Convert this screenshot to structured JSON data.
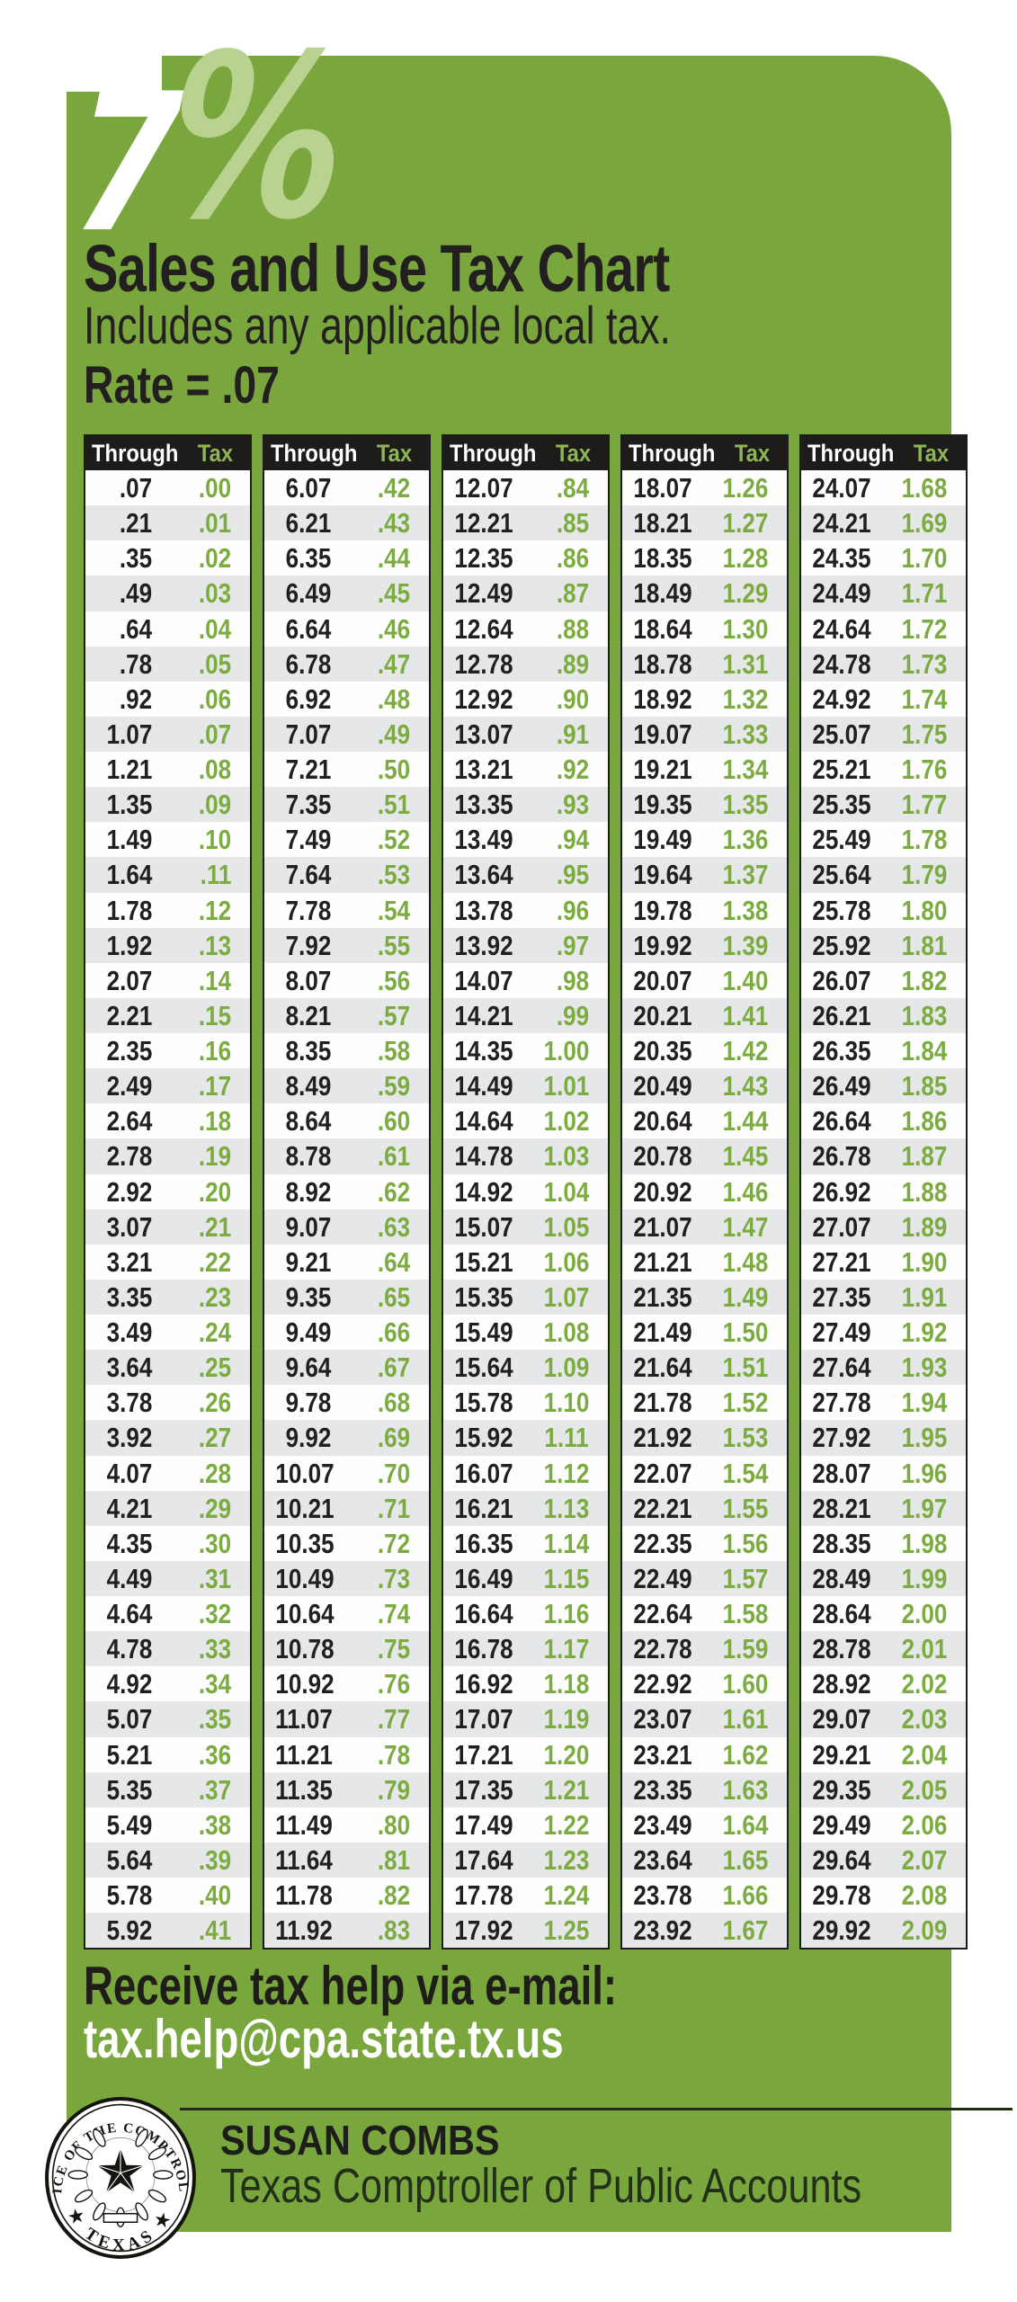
{
  "header": {
    "rate_numeral": "7",
    "rate_percent": "%",
    "title": "Sales and Use Tax Chart",
    "subtitle": "Includes any applicable local tax.",
    "rate_line": "Rate = .07"
  },
  "colors": {
    "panel_green": "#79A73E",
    "light_green_percent": "#BAD28F",
    "header_bar_black": "#1E1C1A",
    "row_gray": "#E6E7E8",
    "through_text": "#231F20",
    "tax_text_green": "#7CAC41",
    "tax_header_green": "#8FB654",
    "email_white": "#FFFFFF"
  },
  "tables": {
    "col_headers": [
      "Through",
      "Tax"
    ],
    "columns": [
      [
        [
          ".07",
          ".00"
        ],
        [
          ".21",
          ".01"
        ],
        [
          ".35",
          ".02"
        ],
        [
          ".49",
          ".03"
        ],
        [
          ".64",
          ".04"
        ],
        [
          ".78",
          ".05"
        ],
        [
          ".92",
          ".06"
        ],
        [
          "1.07",
          ".07"
        ],
        [
          "1.21",
          ".08"
        ],
        [
          "1.35",
          ".09"
        ],
        [
          "1.49",
          ".10"
        ],
        [
          "1.64",
          ".11"
        ],
        [
          "1.78",
          ".12"
        ],
        [
          "1.92",
          ".13"
        ],
        [
          "2.07",
          ".14"
        ],
        [
          "2.21",
          ".15"
        ],
        [
          "2.35",
          ".16"
        ],
        [
          "2.49",
          ".17"
        ],
        [
          "2.64",
          ".18"
        ],
        [
          "2.78",
          ".19"
        ],
        [
          "2.92",
          ".20"
        ],
        [
          "3.07",
          ".21"
        ],
        [
          "3.21",
          ".22"
        ],
        [
          "3.35",
          ".23"
        ],
        [
          "3.49",
          ".24"
        ],
        [
          "3.64",
          ".25"
        ],
        [
          "3.78",
          ".26"
        ],
        [
          "3.92",
          ".27"
        ],
        [
          "4.07",
          ".28"
        ],
        [
          "4.21",
          ".29"
        ],
        [
          "4.35",
          ".30"
        ],
        [
          "4.49",
          ".31"
        ],
        [
          "4.64",
          ".32"
        ],
        [
          "4.78",
          ".33"
        ],
        [
          "4.92",
          ".34"
        ],
        [
          "5.07",
          ".35"
        ],
        [
          "5.21",
          ".36"
        ],
        [
          "5.35",
          ".37"
        ],
        [
          "5.49",
          ".38"
        ],
        [
          "5.64",
          ".39"
        ],
        [
          "5.78",
          ".40"
        ],
        [
          "5.92",
          ".41"
        ]
      ],
      [
        [
          "6.07",
          ".42"
        ],
        [
          "6.21",
          ".43"
        ],
        [
          "6.35",
          ".44"
        ],
        [
          "6.49",
          ".45"
        ],
        [
          "6.64",
          ".46"
        ],
        [
          "6.78",
          ".47"
        ],
        [
          "6.92",
          ".48"
        ],
        [
          "7.07",
          ".49"
        ],
        [
          "7.21",
          ".50"
        ],
        [
          "7.35",
          ".51"
        ],
        [
          "7.49",
          ".52"
        ],
        [
          "7.64",
          ".53"
        ],
        [
          "7.78",
          ".54"
        ],
        [
          "7.92",
          ".55"
        ],
        [
          "8.07",
          ".56"
        ],
        [
          "8.21",
          ".57"
        ],
        [
          "8.35",
          ".58"
        ],
        [
          "8.49",
          ".59"
        ],
        [
          "8.64",
          ".60"
        ],
        [
          "8.78",
          ".61"
        ],
        [
          "8.92",
          ".62"
        ],
        [
          "9.07",
          ".63"
        ],
        [
          "9.21",
          ".64"
        ],
        [
          "9.35",
          ".65"
        ],
        [
          "9.49",
          ".66"
        ],
        [
          "9.64",
          ".67"
        ],
        [
          "9.78",
          ".68"
        ],
        [
          "9.92",
          ".69"
        ],
        [
          "10.07",
          ".70"
        ],
        [
          "10.21",
          ".71"
        ],
        [
          "10.35",
          ".72"
        ],
        [
          "10.49",
          ".73"
        ],
        [
          "10.64",
          ".74"
        ],
        [
          "10.78",
          ".75"
        ],
        [
          "10.92",
          ".76"
        ],
        [
          "11.07",
          ".77"
        ],
        [
          "11.21",
          ".78"
        ],
        [
          "11.35",
          ".79"
        ],
        [
          "11.49",
          ".80"
        ],
        [
          "11.64",
          ".81"
        ],
        [
          "11.78",
          ".82"
        ],
        [
          "11.92",
          ".83"
        ]
      ],
      [
        [
          "12.07",
          ".84"
        ],
        [
          "12.21",
          ".85"
        ],
        [
          "12.35",
          ".86"
        ],
        [
          "12.49",
          ".87"
        ],
        [
          "12.64",
          ".88"
        ],
        [
          "12.78",
          ".89"
        ],
        [
          "12.92",
          ".90"
        ],
        [
          "13.07",
          ".91"
        ],
        [
          "13.21",
          ".92"
        ],
        [
          "13.35",
          ".93"
        ],
        [
          "13.49",
          ".94"
        ],
        [
          "13.64",
          ".95"
        ],
        [
          "13.78",
          ".96"
        ],
        [
          "13.92",
          ".97"
        ],
        [
          "14.07",
          ".98"
        ],
        [
          "14.21",
          ".99"
        ],
        [
          "14.35",
          "1.00"
        ],
        [
          "14.49",
          "1.01"
        ],
        [
          "14.64",
          "1.02"
        ],
        [
          "14.78",
          "1.03"
        ],
        [
          "14.92",
          "1.04"
        ],
        [
          "15.07",
          "1.05"
        ],
        [
          "15.21",
          "1.06"
        ],
        [
          "15.35",
          "1.07"
        ],
        [
          "15.49",
          "1.08"
        ],
        [
          "15.64",
          "1.09"
        ],
        [
          "15.78",
          "1.10"
        ],
        [
          "15.92",
          "1.11"
        ],
        [
          "16.07",
          "1.12"
        ],
        [
          "16.21",
          "1.13"
        ],
        [
          "16.35",
          "1.14"
        ],
        [
          "16.49",
          "1.15"
        ],
        [
          "16.64",
          "1.16"
        ],
        [
          "16.78",
          "1.17"
        ],
        [
          "16.92",
          "1.18"
        ],
        [
          "17.07",
          "1.19"
        ],
        [
          "17.21",
          "1.20"
        ],
        [
          "17.35",
          "1.21"
        ],
        [
          "17.49",
          "1.22"
        ],
        [
          "17.64",
          "1.23"
        ],
        [
          "17.78",
          "1.24"
        ],
        [
          "17.92",
          "1.25"
        ]
      ],
      [
        [
          "18.07",
          "1.26"
        ],
        [
          "18.21",
          "1.27"
        ],
        [
          "18.35",
          "1.28"
        ],
        [
          "18.49",
          "1.29"
        ],
        [
          "18.64",
          "1.30"
        ],
        [
          "18.78",
          "1.31"
        ],
        [
          "18.92",
          "1.32"
        ],
        [
          "19.07",
          "1.33"
        ],
        [
          "19.21",
          "1.34"
        ],
        [
          "19.35",
          "1.35"
        ],
        [
          "19.49",
          "1.36"
        ],
        [
          "19.64",
          "1.37"
        ],
        [
          "19.78",
          "1.38"
        ],
        [
          "19.92",
          "1.39"
        ],
        [
          "20.07",
          "1.40"
        ],
        [
          "20.21",
          "1.41"
        ],
        [
          "20.35",
          "1.42"
        ],
        [
          "20.49",
          "1.43"
        ],
        [
          "20.64",
          "1.44"
        ],
        [
          "20.78",
          "1.45"
        ],
        [
          "20.92",
          "1.46"
        ],
        [
          "21.07",
          "1.47"
        ],
        [
          "21.21",
          "1.48"
        ],
        [
          "21.35",
          "1.49"
        ],
        [
          "21.49",
          "1.50"
        ],
        [
          "21.64",
          "1.51"
        ],
        [
          "21.78",
          "1.52"
        ],
        [
          "21.92",
          "1.53"
        ],
        [
          "22.07",
          "1.54"
        ],
        [
          "22.21",
          "1.55"
        ],
        [
          "22.35",
          "1.56"
        ],
        [
          "22.49",
          "1.57"
        ],
        [
          "22.64",
          "1.58"
        ],
        [
          "22.78",
          "1.59"
        ],
        [
          "22.92",
          "1.60"
        ],
        [
          "23.07",
          "1.61"
        ],
        [
          "23.21",
          "1.62"
        ],
        [
          "23.35",
          "1.63"
        ],
        [
          "23.49",
          "1.64"
        ],
        [
          "23.64",
          "1.65"
        ],
        [
          "23.78",
          "1.66"
        ],
        [
          "23.92",
          "1.67"
        ]
      ],
      [
        [
          "24.07",
          "1.68"
        ],
        [
          "24.21",
          "1.69"
        ],
        [
          "24.35",
          "1.70"
        ],
        [
          "24.49",
          "1.71"
        ],
        [
          "24.64",
          "1.72"
        ],
        [
          "24.78",
          "1.73"
        ],
        [
          "24.92",
          "1.74"
        ],
        [
          "25.07",
          "1.75"
        ],
        [
          "25.21",
          "1.76"
        ],
        [
          "25.35",
          "1.77"
        ],
        [
          "25.49",
          "1.78"
        ],
        [
          "25.64",
          "1.79"
        ],
        [
          "25.78",
          "1.80"
        ],
        [
          "25.92",
          "1.81"
        ],
        [
          "26.07",
          "1.82"
        ],
        [
          "26.21",
          "1.83"
        ],
        [
          "26.35",
          "1.84"
        ],
        [
          "26.49",
          "1.85"
        ],
        [
          "26.64",
          "1.86"
        ],
        [
          "26.78",
          "1.87"
        ],
        [
          "26.92",
          "1.88"
        ],
        [
          "27.07",
          "1.89"
        ],
        [
          "27.21",
          "1.90"
        ],
        [
          "27.35",
          "1.91"
        ],
        [
          "27.49",
          "1.92"
        ],
        [
          "27.64",
          "1.93"
        ],
        [
          "27.78",
          "1.94"
        ],
        [
          "27.92",
          "1.95"
        ],
        [
          "28.07",
          "1.96"
        ],
        [
          "28.21",
          "1.97"
        ],
        [
          "28.35",
          "1.98"
        ],
        [
          "28.49",
          "1.99"
        ],
        [
          "28.64",
          "2.00"
        ],
        [
          "28.78",
          "2.01"
        ],
        [
          "28.92",
          "2.02"
        ],
        [
          "29.07",
          "2.03"
        ],
        [
          "29.21",
          "2.04"
        ],
        [
          "29.35",
          "2.05"
        ],
        [
          "29.49",
          "2.06"
        ],
        [
          "29.64",
          "2.07"
        ],
        [
          "29.78",
          "2.08"
        ],
        [
          "29.92",
          "2.09"
        ]
      ]
    ]
  },
  "email": {
    "line1": "Receive tax help via e-mail:",
    "line2": "tax.help@cpa.state.tx.us"
  },
  "footer": {
    "name": "SUSAN COMBS",
    "org": "Texas Comptroller of Public Accounts",
    "seal_top_text": "OFFICE OF THE COMPTROLLER",
    "seal_bottom_text": "★ TEXAS ★"
  }
}
